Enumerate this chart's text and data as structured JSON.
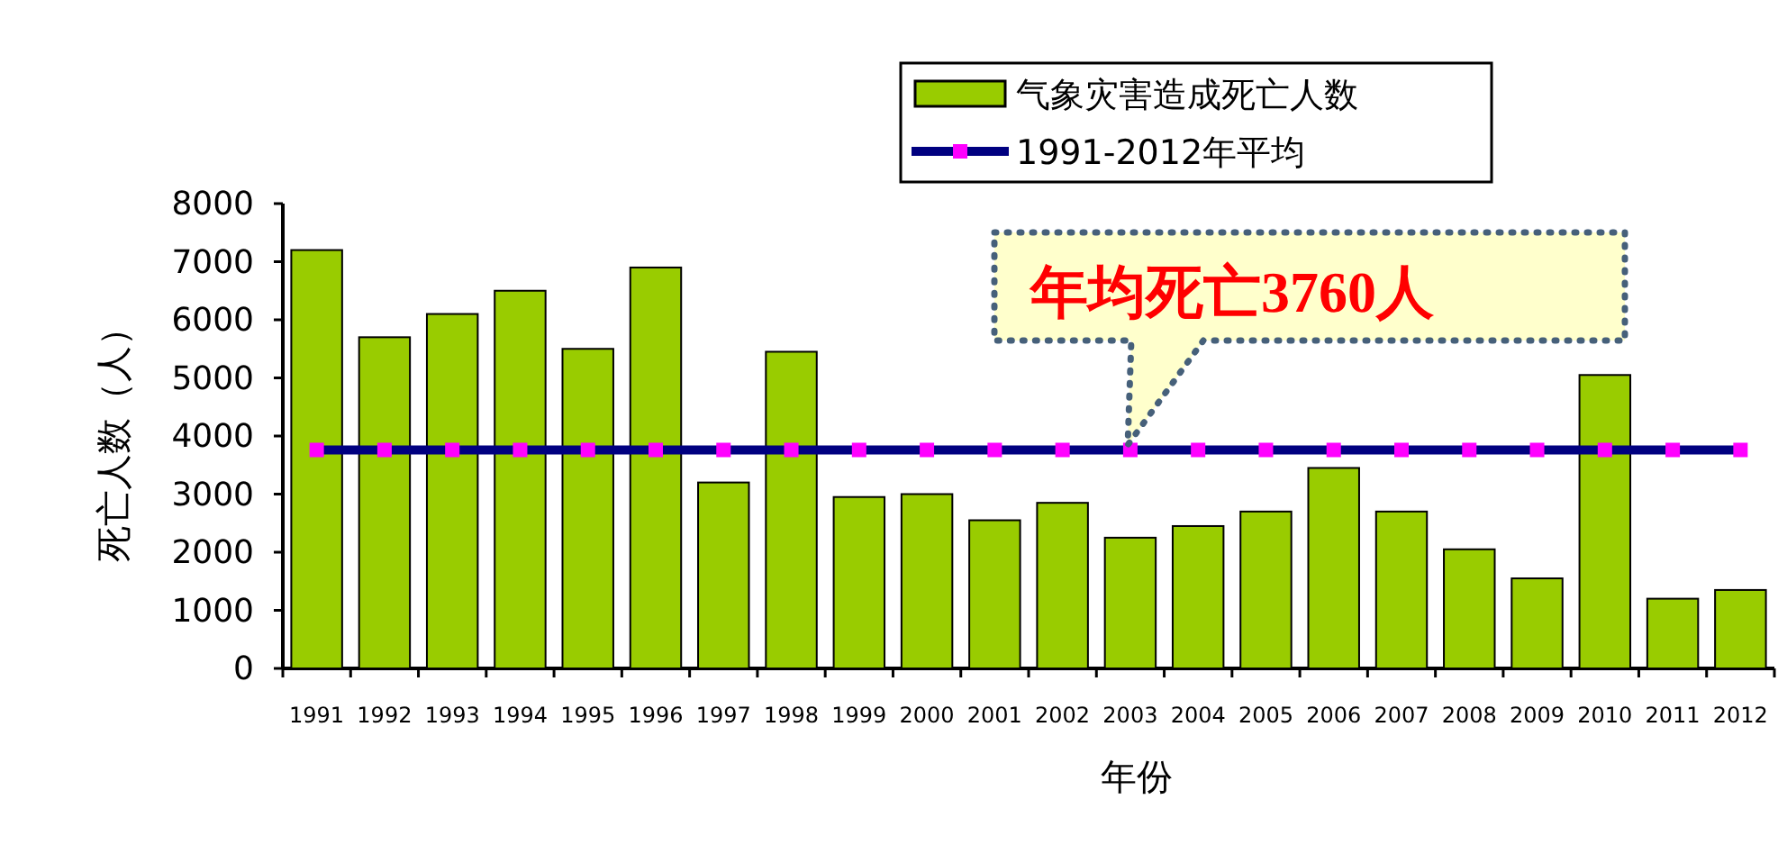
{
  "chart_data": {
    "type": "bar",
    "xlabel": "年份",
    "ylabel": "死亡人数（人）",
    "categories": [
      "1991",
      "1992",
      "1993",
      "1994",
      "1995",
      "1996",
      "1997",
      "1998",
      "1999",
      "2000",
      "2001",
      "2002",
      "2003",
      "2004",
      "2005",
      "2006",
      "2007",
      "2008",
      "2009",
      "2010",
      "2011",
      "2012"
    ],
    "series": [
      {
        "name": "气象灾害造成死亡人数",
        "color": "#99cc00",
        "values": [
          7200,
          5700,
          6100,
          6500,
          5500,
          6900,
          3200,
          5450,
          2950,
          3000,
          2550,
          2850,
          2250,
          2450,
          2700,
          3450,
          2700,
          2050,
          1550,
          5050,
          1200,
          1350
        ]
      },
      {
        "name": "1991-2012年平均",
        "type": "line",
        "color": "#000080",
        "marker": "square",
        "values": [
          3760,
          3760,
          3760,
          3760,
          3760,
          3760,
          3760,
          3760,
          3760,
          3760,
          3760,
          3760,
          3760,
          3760,
          3760,
          3760,
          3760,
          3760,
          3760,
          3760,
          3760,
          3760
        ]
      }
    ],
    "ylim": [
      0,
      8000
    ],
    "yticks": [
      0,
      1000,
      2000,
      3000,
      4000,
      5000,
      6000,
      7000,
      8000
    ],
    "legend": "top right",
    "annotations": [
      "年均死亡3760人"
    ]
  }
}
